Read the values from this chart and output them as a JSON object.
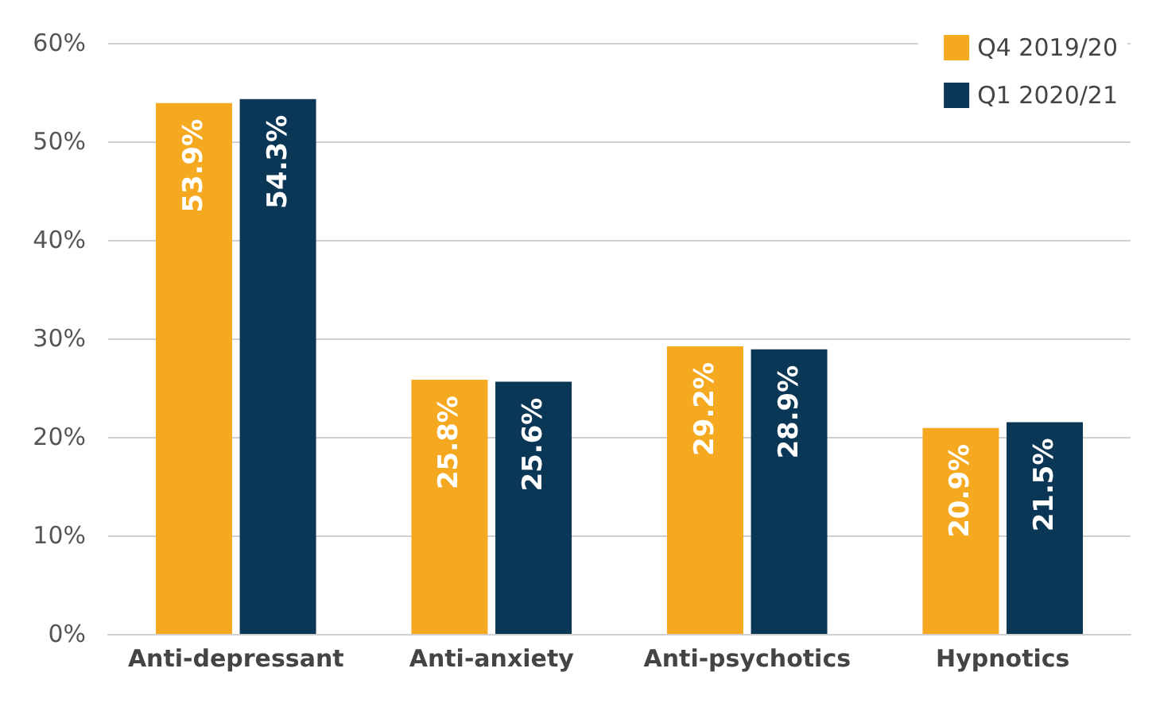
{
  "chart_data": {
    "type": "bar",
    "categories": [
      "Anti-depressant",
      "Anti-anxiety",
      "Anti-psychotics",
      "Hypnotics"
    ],
    "series": [
      {
        "name": "Q4 2019/20",
        "color": "#f5a921",
        "values": [
          53.9,
          25.8,
          29.2,
          20.9
        ],
        "value_labels": [
          "53.9%",
          "25.8%",
          "29.2%",
          "20.9%"
        ]
      },
      {
        "name": "Q1 2020/21",
        "color": "#0b3756",
        "values": [
          54.3,
          25.6,
          28.9,
          21.5
        ],
        "value_labels": [
          "54.3%",
          "25.6%",
          "28.9%",
          "21.5%"
        ]
      }
    ],
    "ylim": [
      0,
      60
    ],
    "yticks": [
      {
        "value": 0,
        "label": "0%"
      },
      {
        "value": 10,
        "label": "10%"
      },
      {
        "value": 20,
        "label": "20%"
      },
      {
        "value": 30,
        "label": "30%"
      },
      {
        "value": 40,
        "label": "40%"
      },
      {
        "value": 50,
        "label": "50%"
      },
      {
        "value": 60,
        "label": "60%"
      }
    ],
    "grid": "y",
    "legend": "top right"
  }
}
